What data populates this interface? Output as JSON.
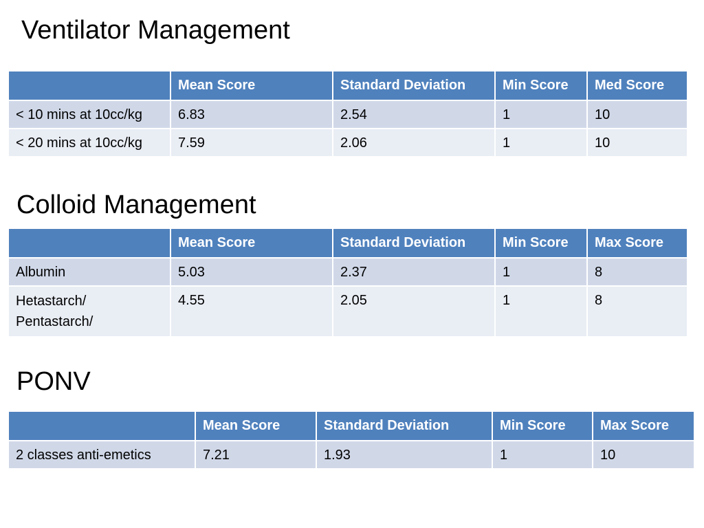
{
  "sections": [
    {
      "title": "Ventilator Management",
      "headers": [
        "",
        "Mean Score",
        "Standard Deviation",
        "Min Score",
        "Med Score"
      ],
      "rows": [
        [
          "< 10 mins at 10cc/kg",
          "6.83",
          "2.54",
          "1",
          "10"
        ],
        [
          "< 20 mins at 10cc/kg",
          "7.59",
          "2.06",
          "1",
          "10"
        ]
      ]
    },
    {
      "title": "Colloid Management",
      "headers": [
        "",
        "Mean Score",
        "Standard Deviation",
        "Min Score",
        "Max Score"
      ],
      "rows": [
        [
          "Albumin",
          "5.03",
          "2.37",
          "1",
          "8"
        ],
        [
          "Hetastarch/ Pentastarch/",
          "4.55",
          "2.05",
          "1",
          "8"
        ]
      ]
    },
    {
      "title": "PONV",
      "headers": [
        "",
        "Mean Score",
        "Standard Deviation",
        "Min Score",
        "Max Score"
      ],
      "rows": [
        [
          "2 classes anti-emetics",
          "7.21",
          "1.93",
          "1",
          "10"
        ]
      ]
    }
  ]
}
